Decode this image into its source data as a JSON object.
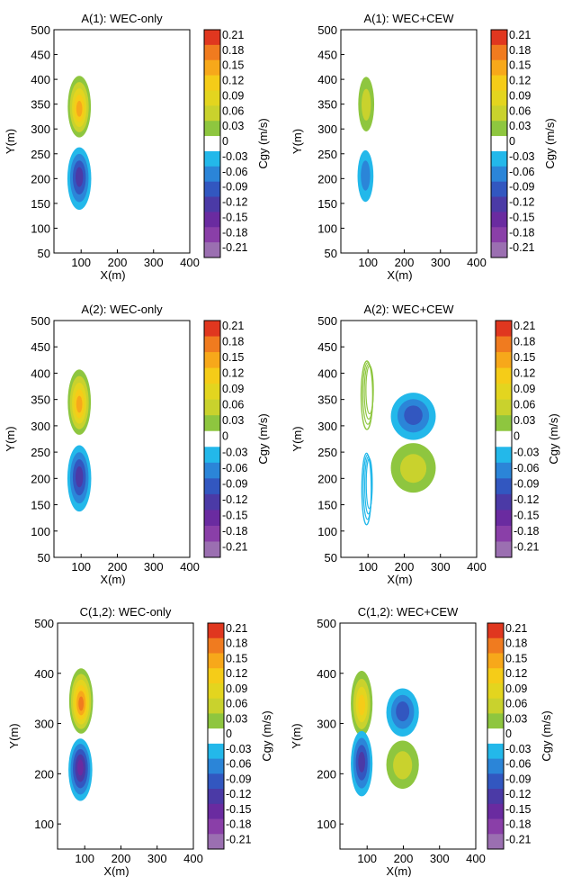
{
  "chart_data": [
    {
      "type": "contour",
      "title": "A(1): WEC-only",
      "xlabel": "X(m)",
      "ylabel": "Y(m)",
      "xlim": [
        25,
        400
      ],
      "ylim": [
        50,
        500
      ],
      "xticks": [
        "100",
        "200",
        "300",
        "400"
      ],
      "yticks": [
        "50",
        "100",
        "150",
        "200",
        "250",
        "300",
        "350",
        "400",
        "450",
        "500"
      ],
      "colorbar": {
        "label": "Cgy (m/s)",
        "ticks": [
          "0.21",
          "0.18",
          "0.15",
          "0.12",
          "0.09",
          "0.06",
          "0.03",
          "0",
          "-0.03",
          "-0.06",
          "-0.09",
          "-0.12",
          "-0.15",
          "-0.18",
          "-0.21"
        ]
      },
      "features": [
        {
          "kind": "filled",
          "cx": 95,
          "cy": 345,
          "rx": 32,
          "ry": 62,
          "peak": 0.14
        },
        {
          "kind": "filled",
          "cx": 95,
          "cy": 200,
          "rx": 33,
          "ry": 63,
          "peak": -0.12
        }
      ]
    },
    {
      "type": "contour",
      "title": "A(1): WEC+CEW",
      "xlabel": "X(m)",
      "ylabel": "Y(m)",
      "xlim": [
        25,
        400
      ],
      "ylim": [
        50,
        500
      ],
      "xticks": [
        "100",
        "200",
        "300",
        "400"
      ],
      "yticks": [
        "50",
        "100",
        "150",
        "200",
        "250",
        "300",
        "350",
        "400",
        "450",
        "500"
      ],
      "colorbar": {
        "label": "Cgy (m/s)",
        "ticks": [
          "0.21",
          "0.18",
          "0.15",
          "0.12",
          "0.09",
          "0.06",
          "0.03",
          "0",
          "-0.03",
          "-0.06",
          "-0.09",
          "-0.12",
          "-0.15",
          "-0.18",
          "-0.21"
        ]
      },
      "features": [
        {
          "kind": "filled",
          "cx": 95,
          "cy": 350,
          "rx": 22,
          "ry": 55,
          "peak": 0.06
        },
        {
          "kind": "filled",
          "cx": 93,
          "cy": 205,
          "rx": 22,
          "ry": 52,
          "peak": -0.07
        }
      ]
    },
    {
      "type": "contour",
      "title": "A(2): WEC-only",
      "xlabel": "X(m)",
      "ylabel": "Y(m)",
      "xlim": [
        25,
        400
      ],
      "ylim": [
        50,
        500
      ],
      "xticks": [
        "100",
        "200",
        "300",
        "400"
      ],
      "yticks": [
        "50",
        "100",
        "150",
        "200",
        "250",
        "300",
        "350",
        "400",
        "450",
        "500"
      ],
      "colorbar": {
        "label": "Cgy (m/s)",
        "ticks": [
          "0.21",
          "0.18",
          "0.15",
          "0.12",
          "0.09",
          "0.06",
          "0.03",
          "0",
          "-0.03",
          "-0.06",
          "-0.09",
          "-0.12",
          "-0.15",
          "-0.18",
          "-0.21"
        ]
      },
      "features": [
        {
          "kind": "filled",
          "cx": 95,
          "cy": 345,
          "rx": 32,
          "ry": 62,
          "peak": 0.14
        },
        {
          "kind": "filled",
          "cx": 95,
          "cy": 200,
          "rx": 33,
          "ry": 63,
          "peak": -0.12
        }
      ]
    },
    {
      "type": "contour",
      "title": "A(2): WEC+CEW",
      "xlabel": "X(m)",
      "ylabel": "Y(m)",
      "xlim": [
        25,
        400
      ],
      "ylim": [
        50,
        500
      ],
      "xticks": [
        "100",
        "200",
        "300",
        "400"
      ],
      "yticks": [
        "50",
        "100",
        "150",
        "200",
        "250",
        "300",
        "350",
        "400",
        "450",
        "500"
      ],
      "colorbar": {
        "label": "Cgy (m/s)",
        "ticks": [
          "0.21",
          "0.18",
          "0.15",
          "0.12",
          "0.09",
          "0.06",
          "0.03",
          "0",
          "-0.03",
          "-0.06",
          "-0.09",
          "-0.12",
          "-0.15",
          "-0.18",
          "-0.21"
        ]
      },
      "features": [
        {
          "kind": "lines",
          "cx": 97,
          "cy": 358,
          "rx": 16,
          "ry": 65,
          "peak": 0.04
        },
        {
          "kind": "lines",
          "cx": 96,
          "cy": 180,
          "rx": 13,
          "ry": 68,
          "peak": -0.04
        },
        {
          "kind": "filled",
          "cx": 225,
          "cy": 318,
          "rx": 62,
          "ry": 45,
          "peak": -0.08
        },
        {
          "kind": "filled",
          "cx": 225,
          "cy": 220,
          "rx": 62,
          "ry": 47,
          "peak": 0.07
        }
      ]
    },
    {
      "type": "contour",
      "title": "C(1,2): WEC-only",
      "xlabel": "X(m)",
      "ylabel": "Y(m)",
      "xlim": [
        25,
        400
      ],
      "ylim": [
        50,
        500
      ],
      "xticks": [
        "100",
        "200",
        "300",
        "400"
      ],
      "yticks": [
        "100",
        "200",
        "300",
        "400",
        "500"
      ],
      "colorbar": {
        "label": "Cgy (m/s)",
        "ticks": [
          "0.21",
          "0.18",
          "0.15",
          "0.12",
          "0.09",
          "0.06",
          "0.03",
          "0",
          "-0.03",
          "-0.06",
          "-0.09",
          "-0.12",
          "-0.15",
          "-0.18",
          "-0.21"
        ]
      },
      "features": [
        {
          "kind": "filled",
          "cx": 90,
          "cy": 345,
          "rx": 33,
          "ry": 65,
          "peak": 0.17
        },
        {
          "kind": "filled",
          "cx": 88,
          "cy": 208,
          "rx": 33,
          "ry": 62,
          "peak": -0.15
        }
      ]
    },
    {
      "type": "contour",
      "title": "C(1,2): WEC+CEW",
      "xlabel": "X(m)",
      "ylabel": "Y(m)",
      "xlim": [
        25,
        400
      ],
      "ylim": [
        50,
        500
      ],
      "xticks": [
        "100",
        "200",
        "300",
        "400"
      ],
      "yticks": [
        "100",
        "200",
        "300",
        "400",
        "500"
      ],
      "colorbar": {
        "label": "Cgy (m/s)",
        "ticks": [
          "0.21",
          "0.18",
          "0.15",
          "0.12",
          "0.09",
          "0.06",
          "0.03",
          "0",
          "-0.03",
          "-0.06",
          "-0.09",
          "-0.12",
          "-0.15",
          "-0.18",
          "-0.21"
        ]
      },
      "features": [
        {
          "kind": "filled",
          "cx": 85,
          "cy": 340,
          "rx": 30,
          "ry": 65,
          "peak": 0.11
        },
        {
          "kind": "filled",
          "cx": 85,
          "cy": 220,
          "rx": 30,
          "ry": 65,
          "peak": -0.11
        },
        {
          "kind": "filled",
          "cx": 198,
          "cy": 322,
          "rx": 45,
          "ry": 48,
          "peak": -0.08
        },
        {
          "kind": "filled",
          "cx": 198,
          "cy": 218,
          "rx": 45,
          "ry": 48,
          "peak": 0.07
        }
      ]
    }
  ],
  "colors": {
    "colormap": [
      "#9b6fb1",
      "#8a3fa8",
      "#6a2ba0",
      "#4b3aa6",
      "#3257c0",
      "#2b85d8",
      "#23b8ea",
      "#8ec63f",
      "#c9d22d",
      "#e3d51f",
      "#f5cc18",
      "#f7a81a",
      "#f07b1f",
      "#e0371f"
    ],
    "zero_band": "#ffffff"
  }
}
